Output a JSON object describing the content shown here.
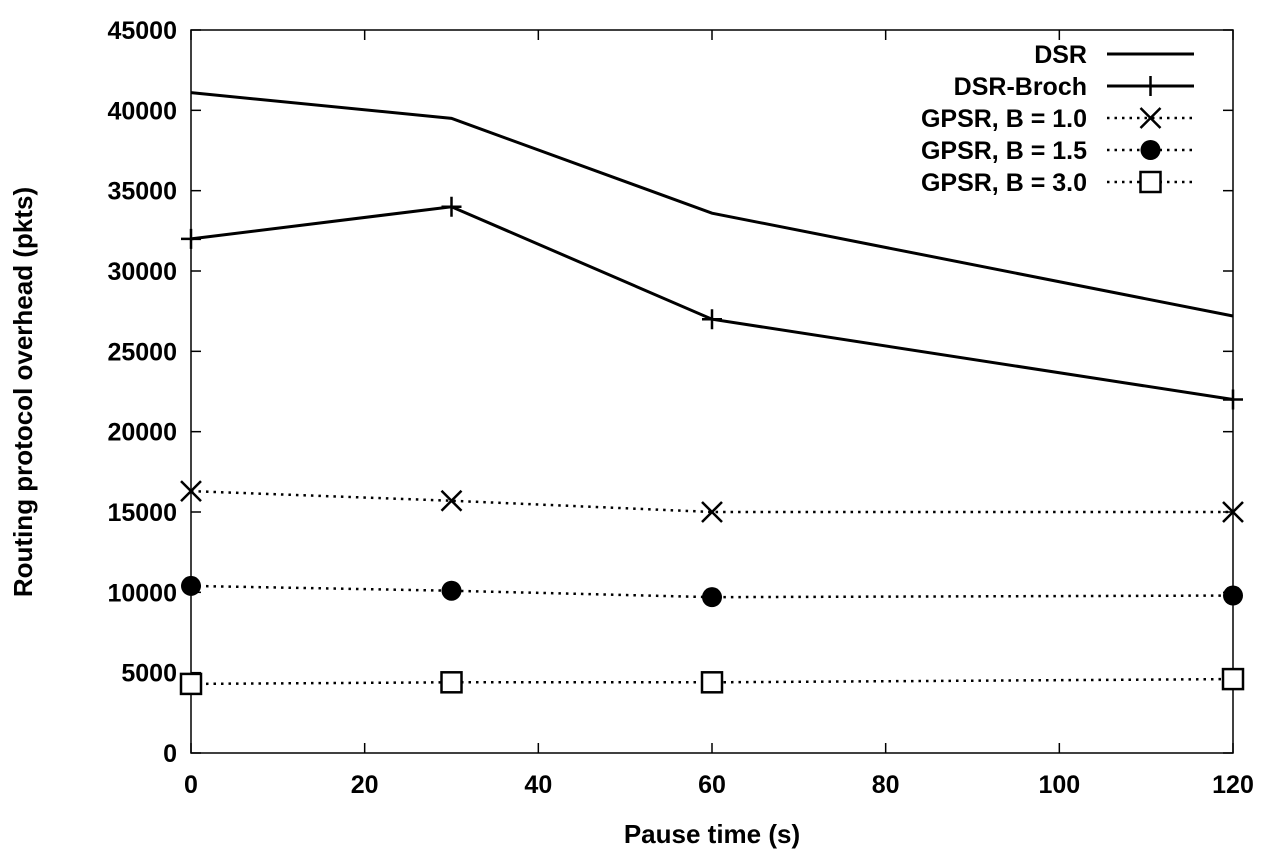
{
  "chart_data": {
    "type": "line",
    "title": "",
    "xlabel": "Pause time (s)",
    "ylabel": "Routing protocol overhead (pkts)",
    "xlim": [
      0,
      120
    ],
    "ylim": [
      0,
      45000
    ],
    "xticks": [
      0,
      20,
      40,
      60,
      80,
      100,
      120
    ],
    "yticks": [
      0,
      5000,
      10000,
      15000,
      20000,
      25000,
      30000,
      35000,
      40000,
      45000
    ],
    "grid": false,
    "legend_position": "top-right",
    "series": [
      {
        "name": "DSR",
        "marker": "none",
        "linestyle": "solid",
        "x": [
          0,
          30,
          60,
          120
        ],
        "y": [
          41100,
          39500,
          33600,
          27200
        ]
      },
      {
        "name": "DSR-Broch",
        "marker": "plus",
        "linestyle": "solid",
        "x": [
          0,
          30,
          60,
          120
        ],
        "y": [
          32000,
          34000,
          27000,
          22000
        ]
      },
      {
        "name": "GPSR, B = 1.0",
        "marker": "cross",
        "linestyle": "dotted",
        "x": [
          0,
          30,
          60,
          120
        ],
        "y": [
          16300,
          15700,
          15000,
          15000
        ]
      },
      {
        "name": "GPSR, B = 1.5",
        "marker": "filled-circle",
        "linestyle": "dotted",
        "x": [
          0,
          30,
          60,
          120
        ],
        "y": [
          10400,
          10100,
          9700,
          9800
        ]
      },
      {
        "name": "GPSR, B = 3.0",
        "marker": "open-square",
        "linestyle": "dotted",
        "x": [
          0,
          30,
          60,
          120
        ],
        "y": [
          4300,
          4400,
          4400,
          4600
        ]
      }
    ]
  }
}
